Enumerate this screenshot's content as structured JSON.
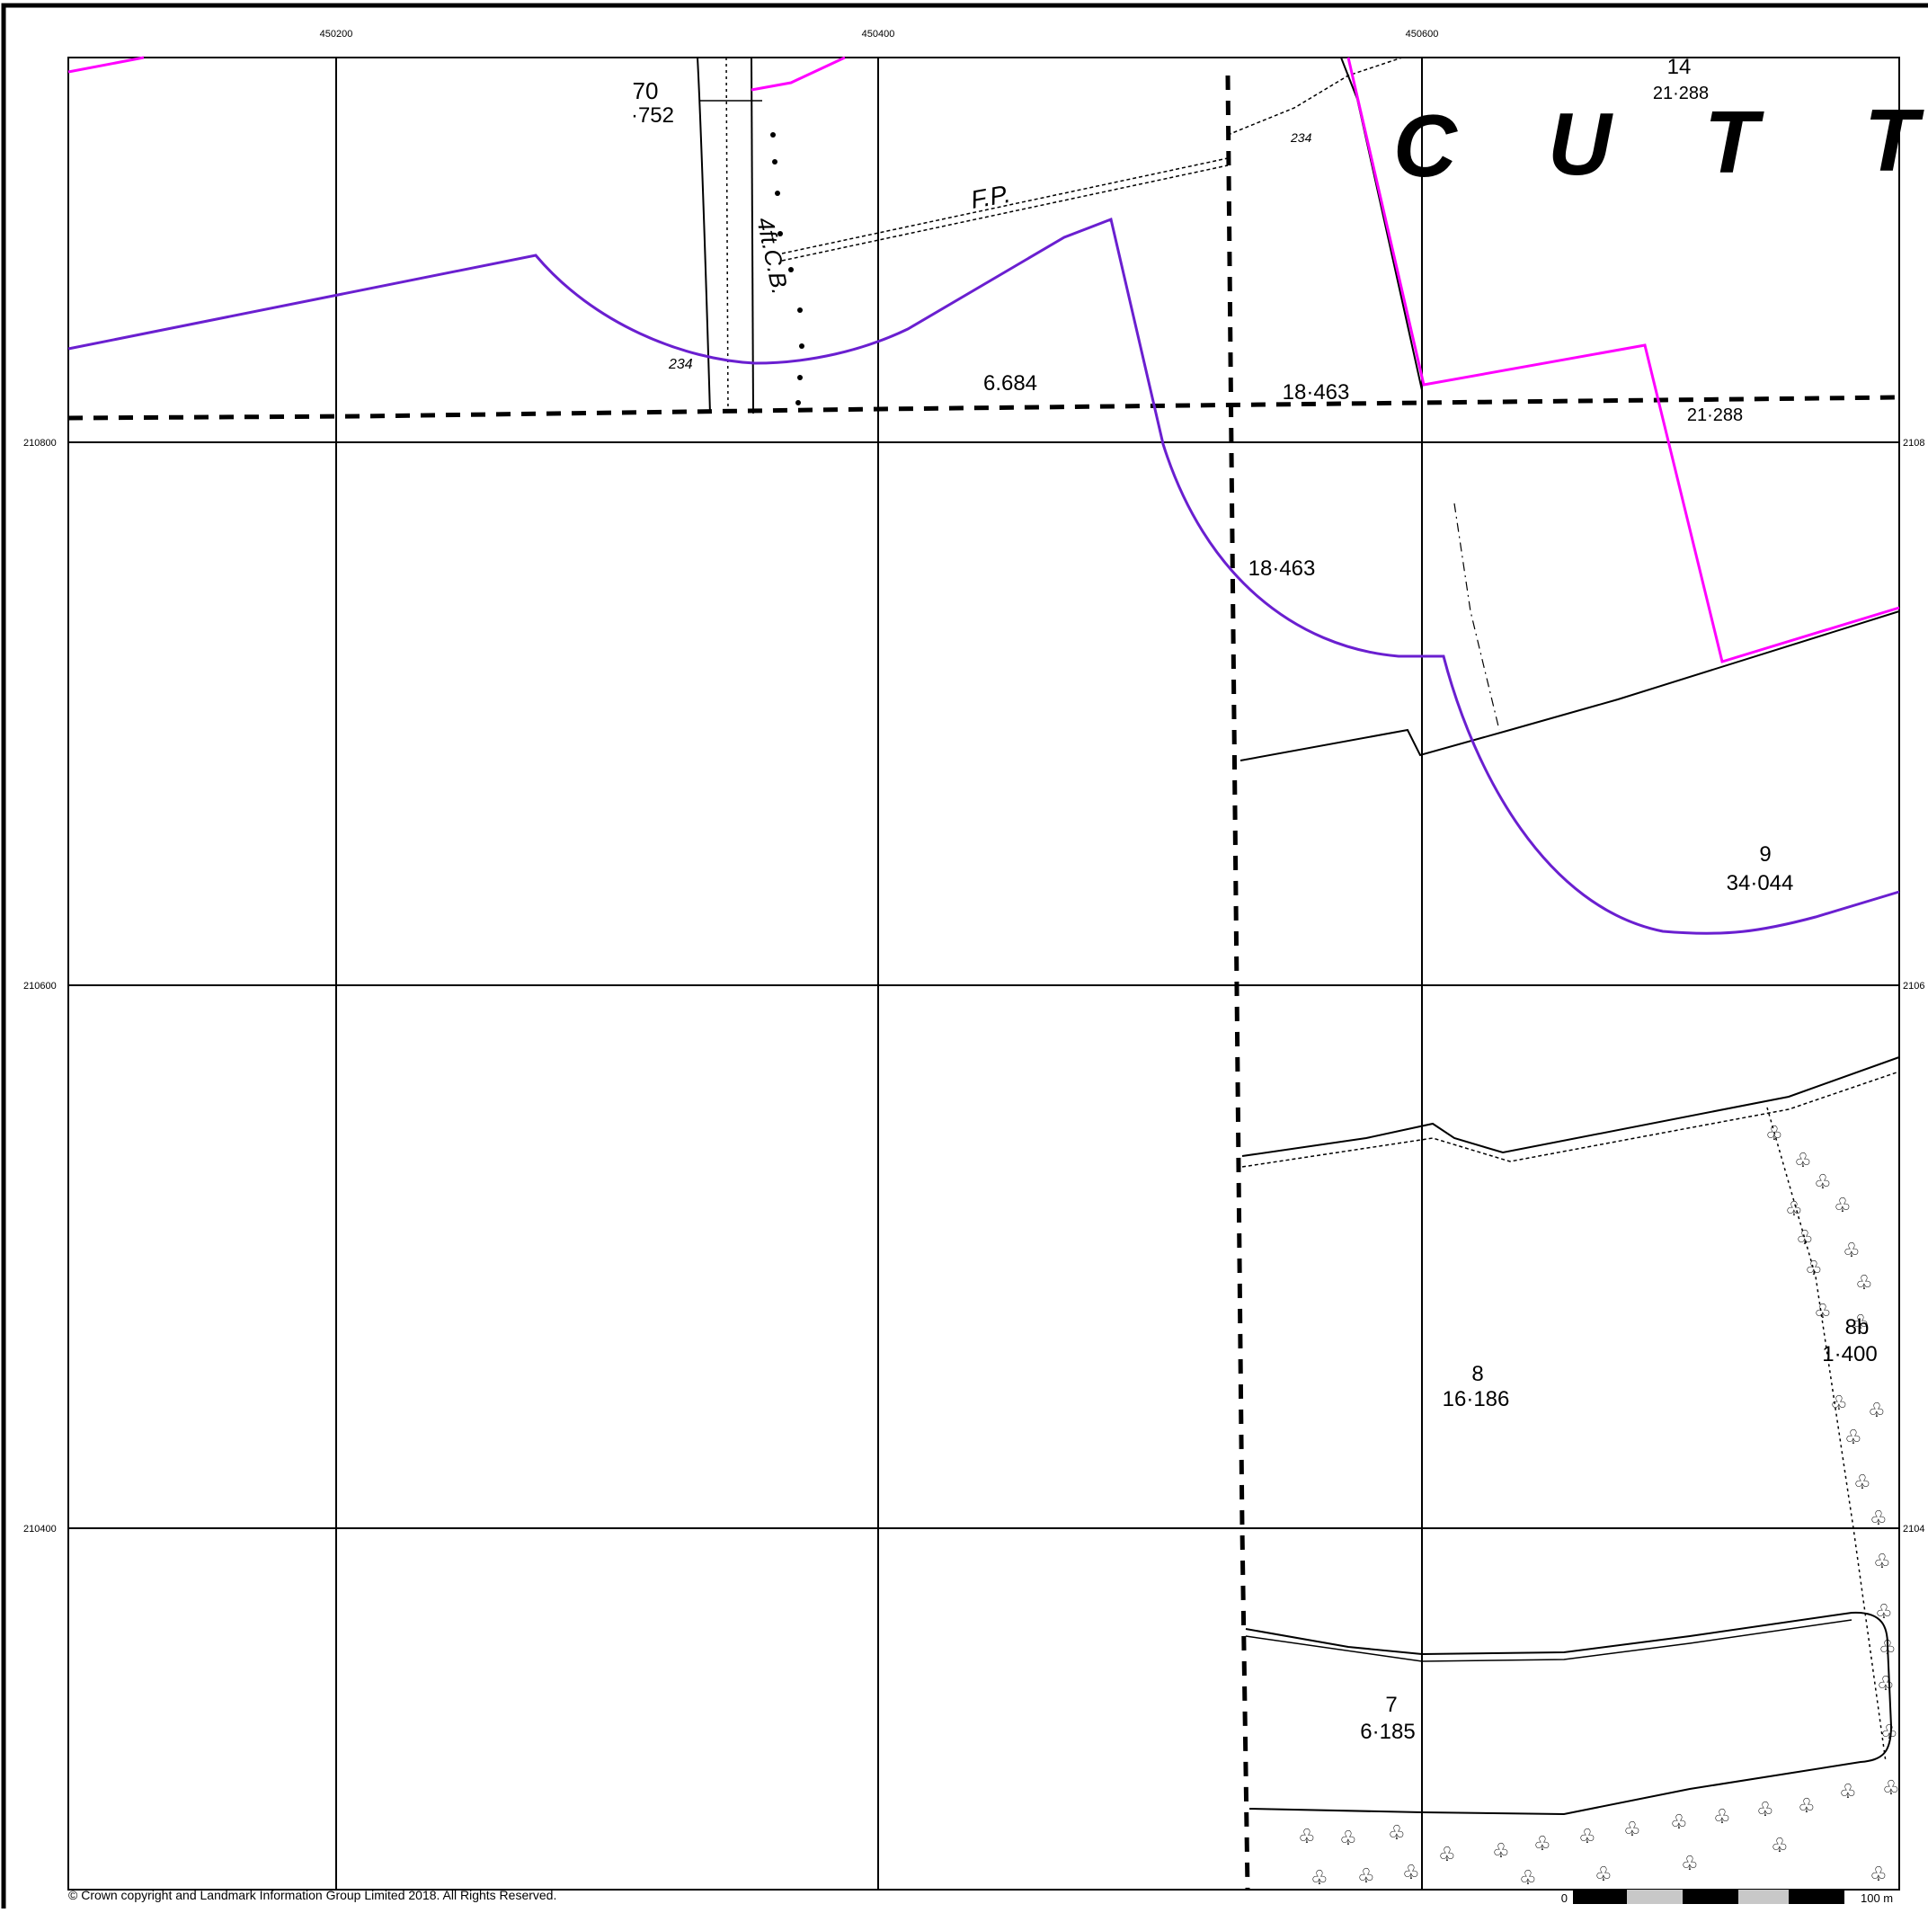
{
  "map": {
    "easting_labels": [
      "450200",
      "450400",
      "450600"
    ],
    "northing_labels": [
      "210800",
      "210600",
      "210400"
    ],
    "northing_labels_right": [
      "2108",
      "2106",
      "2104"
    ],
    "place_name_letters": [
      "C",
      "U",
      "T",
      "T"
    ],
    "parcels": [
      {
        "number": "70",
        "area": "·752"
      },
      {
        "number": "14",
        "area": "21·288"
      },
      {
        "number": "",
        "area": "6.684"
      },
      {
        "number": "",
        "area": "18·463"
      },
      {
        "number": "",
        "area": "21·288"
      },
      {
        "number": "",
        "area": "18·463"
      },
      {
        "number": "9",
        "area": "34·044"
      },
      {
        "number": "8b",
        "area": "1·400"
      },
      {
        "number": "8",
        "area": "16·186"
      },
      {
        "number": "7",
        "area": "6·185"
      }
    ],
    "annotations": {
      "footpath": "F.P.",
      "boundary_note": "4ft.C.B.",
      "bench_mark_1": "234",
      "bench_mark_2": "234"
    },
    "scale_bar": {
      "start_label": "0",
      "end_label": "100 m"
    },
    "copyright": "© Crown copyright and Landmark Information Group Limited 2018.  All Rights Reserved.",
    "colors": {
      "grid": "#000000",
      "site_boundary": "#6a1fd0",
      "magenta_boundary": "#ff00ff",
      "feature_line": "#000000",
      "background": "#ffffff"
    }
  }
}
